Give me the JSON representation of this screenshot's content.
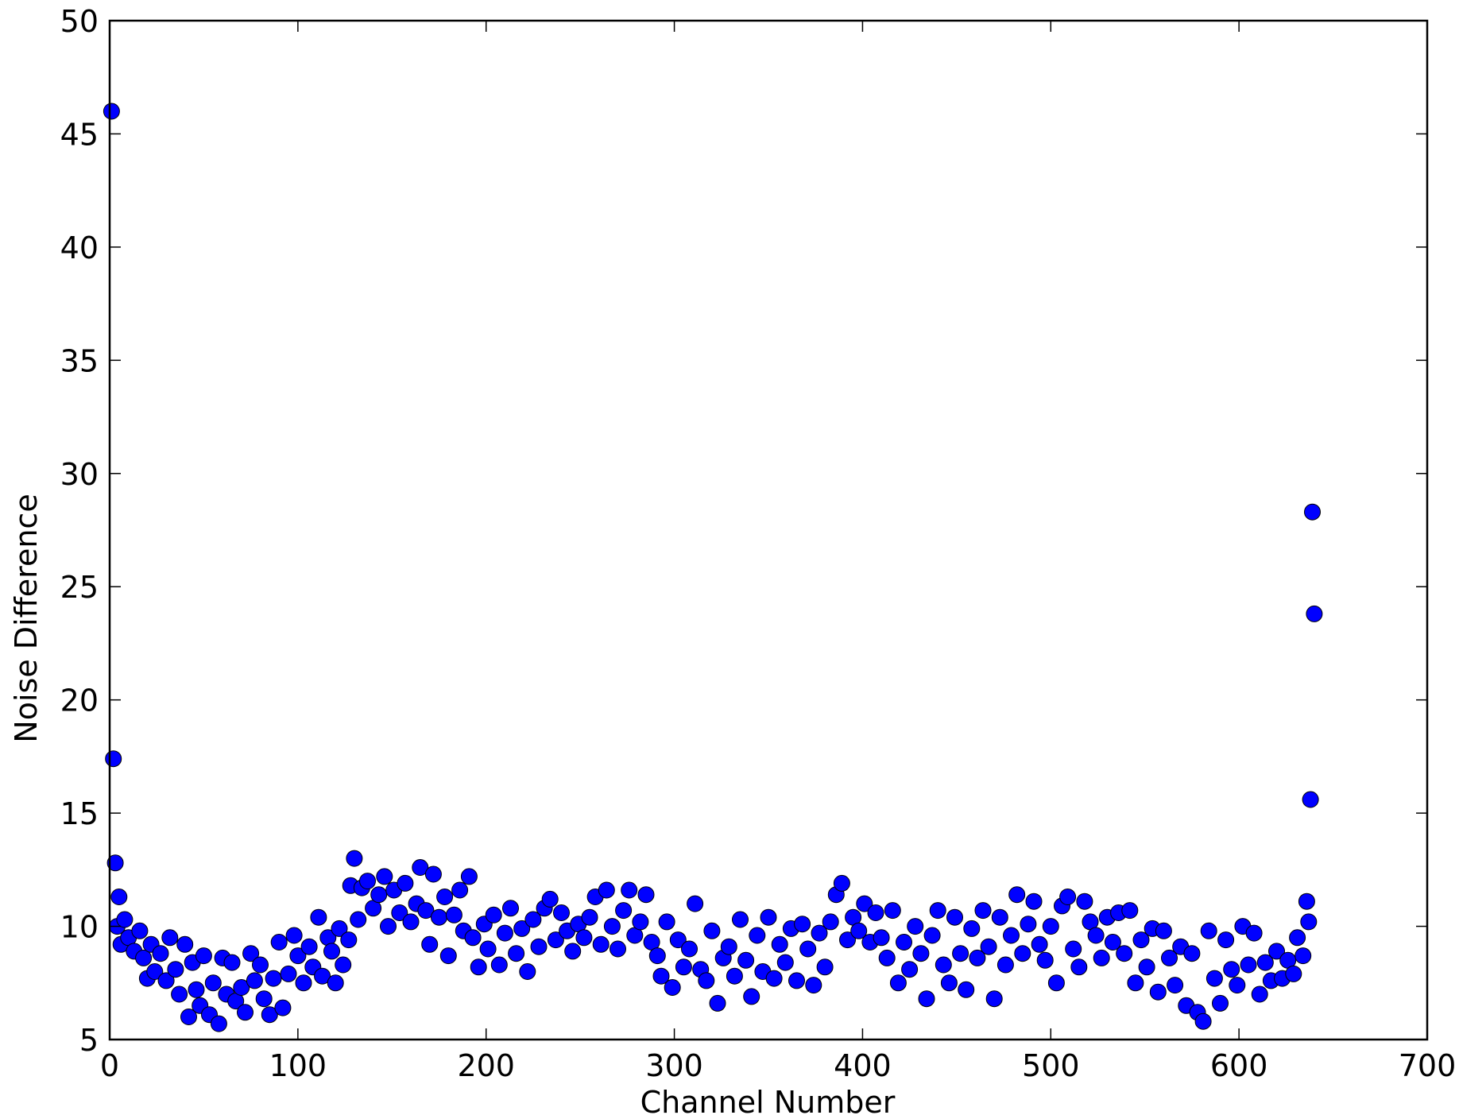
{
  "chart_data": {
    "type": "scatter",
    "title": "",
    "xlabel": "Channel Number",
    "ylabel": "Noise Difference",
    "xlim": [
      0,
      700
    ],
    "ylim": [
      5,
      50
    ],
    "xticks": [
      "0",
      "100",
      "200",
      "300",
      "400",
      "500",
      "600",
      "700"
    ],
    "yticks": [
      "5",
      "10",
      "15",
      "20",
      "25",
      "30",
      "35",
      "40",
      "45",
      "50"
    ],
    "grid": false,
    "marker_color": "#0000ff",
    "marker_edge_color": "#000000",
    "series": [
      {
        "points": [
          [
            1,
            46.0
          ],
          [
            2,
            17.4
          ],
          [
            3,
            12.8
          ],
          [
            4,
            10.0
          ],
          [
            5,
            11.3
          ],
          [
            6,
            9.2
          ],
          [
            8,
            10.3
          ],
          [
            10,
            9.5
          ],
          [
            13,
            8.9
          ],
          [
            16,
            9.8
          ],
          [
            18,
            8.6
          ],
          [
            20,
            7.7
          ],
          [
            22,
            9.2
          ],
          [
            24,
            8.0
          ],
          [
            27,
            8.8
          ],
          [
            30,
            7.6
          ],
          [
            32,
            9.5
          ],
          [
            35,
            8.1
          ],
          [
            37,
            7.0
          ],
          [
            40,
            9.2
          ],
          [
            42,
            6.0
          ],
          [
            44,
            8.4
          ],
          [
            46,
            7.2
          ],
          [
            48,
            6.5
          ],
          [
            50,
            8.7
          ],
          [
            53,
            6.1
          ],
          [
            55,
            7.5
          ],
          [
            58,
            5.7
          ],
          [
            60,
            8.6
          ],
          [
            62,
            7.0
          ],
          [
            65,
            8.4
          ],
          [
            67,
            6.7
          ],
          [
            70,
            7.3
          ],
          [
            72,
            6.2
          ],
          [
            75,
            8.8
          ],
          [
            77,
            7.6
          ],
          [
            80,
            8.3
          ],
          [
            82,
            6.8
          ],
          [
            85,
            6.1
          ],
          [
            87,
            7.7
          ],
          [
            90,
            9.3
          ],
          [
            92,
            6.4
          ],
          [
            95,
            7.9
          ],
          [
            98,
            9.6
          ],
          [
            100,
            8.7
          ],
          [
            103,
            7.5
          ],
          [
            106,
            9.1
          ],
          [
            108,
            8.2
          ],
          [
            111,
            10.4
          ],
          [
            113,
            7.8
          ],
          [
            116,
            9.5
          ],
          [
            118,
            8.9
          ],
          [
            120,
            7.5
          ],
          [
            122,
            9.9
          ],
          [
            124,
            8.3
          ],
          [
            127,
            9.4
          ],
          [
            128,
            11.8
          ],
          [
            130,
            13.0
          ],
          [
            132,
            10.3
          ],
          [
            134,
            11.7
          ],
          [
            137,
            12.0
          ],
          [
            140,
            10.8
          ],
          [
            143,
            11.4
          ],
          [
            146,
            12.2
          ],
          [
            148,
            10.0
          ],
          [
            151,
            11.6
          ],
          [
            154,
            10.6
          ],
          [
            157,
            11.9
          ],
          [
            160,
            10.2
          ],
          [
            163,
            11.0
          ],
          [
            165,
            12.6
          ],
          [
            168,
            10.7
          ],
          [
            170,
            9.2
          ],
          [
            172,
            12.3
          ],
          [
            175,
            10.4
          ],
          [
            178,
            11.3
          ],
          [
            180,
            8.7
          ],
          [
            183,
            10.5
          ],
          [
            186,
            11.6
          ],
          [
            188,
            9.8
          ],
          [
            191,
            12.2
          ],
          [
            193,
            9.5
          ],
          [
            196,
            8.2
          ],
          [
            199,
            10.1
          ],
          [
            201,
            9.0
          ],
          [
            204,
            10.5
          ],
          [
            207,
            8.3
          ],
          [
            210,
            9.7
          ],
          [
            213,
            10.8
          ],
          [
            216,
            8.8
          ],
          [
            219,
            9.9
          ],
          [
            222,
            8.0
          ],
          [
            225,
            10.3
          ],
          [
            228,
            9.1
          ],
          [
            231,
            10.8
          ],
          [
            234,
            11.2
          ],
          [
            237,
            9.4
          ],
          [
            240,
            10.6
          ],
          [
            243,
            9.8
          ],
          [
            246,
            8.9
          ],
          [
            249,
            10.1
          ],
          [
            252,
            9.5
          ],
          [
            255,
            10.4
          ],
          [
            258,
            11.3
          ],
          [
            261,
            9.2
          ],
          [
            264,
            11.6
          ],
          [
            267,
            10.0
          ],
          [
            270,
            9.0
          ],
          [
            273,
            10.7
          ],
          [
            276,
            11.6
          ],
          [
            279,
            9.6
          ],
          [
            282,
            10.2
          ],
          [
            285,
            11.4
          ],
          [
            288,
            9.3
          ],
          [
            291,
            8.7
          ],
          [
            293,
            7.8
          ],
          [
            296,
            10.2
          ],
          [
            299,
            7.3
          ],
          [
            302,
            9.4
          ],
          [
            305,
            8.2
          ],
          [
            308,
            9.0
          ],
          [
            311,
            11.0
          ],
          [
            314,
            8.1
          ],
          [
            317,
            7.6
          ],
          [
            320,
            9.8
          ],
          [
            323,
            6.6
          ],
          [
            326,
            8.6
          ],
          [
            329,
            9.1
          ],
          [
            332,
            7.8
          ],
          [
            335,
            10.3
          ],
          [
            338,
            8.5
          ],
          [
            341,
            6.9
          ],
          [
            344,
            9.6
          ],
          [
            347,
            8.0
          ],
          [
            350,
            10.4
          ],
          [
            353,
            7.7
          ],
          [
            356,
            9.2
          ],
          [
            359,
            8.4
          ],
          [
            362,
            9.9
          ],
          [
            365,
            7.6
          ],
          [
            368,
            10.1
          ],
          [
            371,
            9.0
          ],
          [
            374,
            7.4
          ],
          [
            377,
            9.7
          ],
          [
            380,
            8.2
          ],
          [
            383,
            10.2
          ],
          [
            386,
            11.4
          ],
          [
            389,
            11.9
          ],
          [
            392,
            9.4
          ],
          [
            395,
            10.4
          ],
          [
            398,
            9.8
          ],
          [
            401,
            11.0
          ],
          [
            404,
            9.3
          ],
          [
            407,
            10.6
          ],
          [
            410,
            9.5
          ],
          [
            413,
            8.6
          ],
          [
            416,
            10.7
          ],
          [
            419,
            7.5
          ],
          [
            422,
            9.3
          ],
          [
            425,
            8.1
          ],
          [
            428,
            10.0
          ],
          [
            431,
            8.8
          ],
          [
            434,
            6.8
          ],
          [
            437,
            9.6
          ],
          [
            440,
            10.7
          ],
          [
            443,
            8.3
          ],
          [
            446,
            7.5
          ],
          [
            449,
            10.4
          ],
          [
            452,
            8.8
          ],
          [
            455,
            7.2
          ],
          [
            458,
            9.9
          ],
          [
            461,
            8.6
          ],
          [
            464,
            10.7
          ],
          [
            467,
            9.1
          ],
          [
            470,
            6.8
          ],
          [
            473,
            10.4
          ],
          [
            476,
            8.3
          ],
          [
            479,
            9.6
          ],
          [
            482,
            11.4
          ],
          [
            485,
            8.8
          ],
          [
            488,
            10.1
          ],
          [
            491,
            11.1
          ],
          [
            494,
            9.2
          ],
          [
            497,
            8.5
          ],
          [
            500,
            10.0
          ],
          [
            503,
            7.5
          ],
          [
            506,
            10.9
          ],
          [
            509,
            11.3
          ],
          [
            512,
            9.0
          ],
          [
            515,
            8.2
          ],
          [
            518,
            11.1
          ],
          [
            521,
            10.2
          ],
          [
            524,
            9.6
          ],
          [
            527,
            8.6
          ],
          [
            530,
            10.4
          ],
          [
            533,
            9.3
          ],
          [
            536,
            10.6
          ],
          [
            539,
            8.8
          ],
          [
            542,
            10.7
          ],
          [
            545,
            7.5
          ],
          [
            548,
            9.4
          ],
          [
            551,
            8.2
          ],
          [
            554,
            9.9
          ],
          [
            557,
            7.1
          ],
          [
            560,
            9.8
          ],
          [
            563,
            8.6
          ],
          [
            566,
            7.4
          ],
          [
            569,
            9.1
          ],
          [
            572,
            6.5
          ],
          [
            575,
            8.8
          ],
          [
            578,
            6.2
          ],
          [
            581,
            5.8
          ],
          [
            584,
            9.8
          ],
          [
            587,
            7.7
          ],
          [
            590,
            6.6
          ],
          [
            593,
            9.4
          ],
          [
            596,
            8.1
          ],
          [
            599,
            7.4
          ],
          [
            602,
            10.0
          ],
          [
            605,
            8.3
          ],
          [
            608,
            9.7
          ],
          [
            611,
            7.0
          ],
          [
            614,
            8.4
          ],
          [
            617,
            7.6
          ],
          [
            620,
            8.9
          ],
          [
            623,
            7.7
          ],
          [
            626,
            8.5
          ],
          [
            629,
            7.9
          ],
          [
            631,
            9.5
          ],
          [
            634,
            8.7
          ],
          [
            636,
            11.1
          ],
          [
            637,
            10.2
          ],
          [
            638,
            15.6
          ],
          [
            639,
            28.3
          ],
          [
            640,
            23.8
          ]
        ]
      }
    ]
  }
}
